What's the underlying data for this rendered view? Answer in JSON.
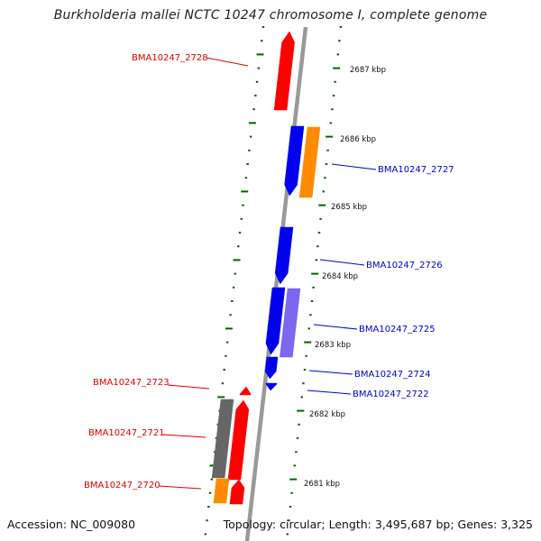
{
  "title": "Burkholderia mallei NCTC 10247 chromosome I, complete genome",
  "footer": {
    "accession": "Accession: NC_009080",
    "topology": "Topology: circular; Length: 3,495,687 bp; Genes: 3,325"
  },
  "colors": {
    "red_gene": "#ff0000",
    "blue_gene": "#0000ee",
    "orange_gene": "#ff8c00",
    "violet_gene": "#7b68ee",
    "gray_gene": "#666666",
    "tick_green": "#006400",
    "backbone": "#999999",
    "label_red": "#dd0000",
    "label_blue": "#0000cc"
  },
  "scale_labels": [
    "2687 kbp",
    "2686 kbp",
    "2685 kbp",
    "2684 kbp",
    "2683 kbp",
    "2682 kbp",
    "2681 kbp"
  ],
  "gene_labels": [
    {
      "text": "BMA10247_2728",
      "color": "red"
    },
    {
      "text": "BMA10247_2727",
      "color": "blue"
    },
    {
      "text": "BMA10247_2726",
      "color": "blue"
    },
    {
      "text": "BMA10247_2725",
      "color": "blue"
    },
    {
      "text": "BMA10247_2724",
      "color": "blue"
    },
    {
      "text": "BMA10247_2722",
      "color": "blue"
    },
    {
      "text": "BMA10247_2723",
      "color": "red"
    },
    {
      "text": "BMA10247_2721",
      "color": "red"
    },
    {
      "text": "BMA10247_2720",
      "color": "red"
    }
  ],
  "genes": [
    {
      "name": "gene-2728",
      "color": "red",
      "strand": "up"
    },
    {
      "name": "gene-2727",
      "color": "blue",
      "strand": "down"
    },
    {
      "name": "gene-2727-orange",
      "color": "orange",
      "strand": "down"
    },
    {
      "name": "gene-2726",
      "color": "blue",
      "strand": "down"
    },
    {
      "name": "gene-2725",
      "color": "blue",
      "strand": "down"
    },
    {
      "name": "gene-2725-violet",
      "color": "violet",
      "strand": "none"
    },
    {
      "name": "gene-2724",
      "color": "blue",
      "strand": "down"
    },
    {
      "name": "gene-2722",
      "color": "blue",
      "strand": "down"
    },
    {
      "name": "gene-2723",
      "color": "red",
      "strand": "up"
    },
    {
      "name": "gene-2721",
      "color": "red",
      "strand": "up"
    },
    {
      "name": "gene-2721-gray",
      "color": "gray",
      "strand": "none"
    },
    {
      "name": "gene-2720",
      "color": "red",
      "strand": "up"
    },
    {
      "name": "gene-2720-orange",
      "color": "orange",
      "strand": "none"
    }
  ]
}
